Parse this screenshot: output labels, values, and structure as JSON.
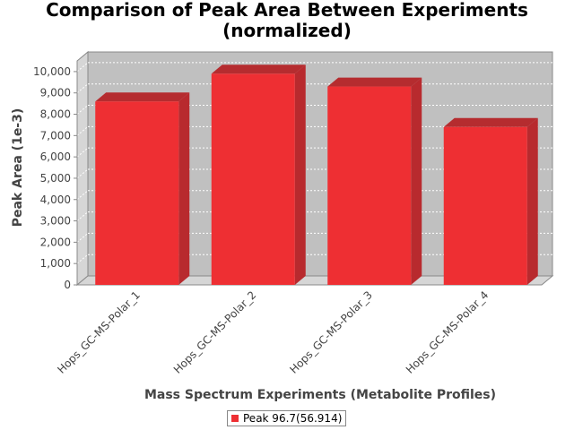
{
  "chart_data": {
    "type": "bar",
    "title": [
      "Comparison of Peak Area Between Experiments",
      "(normalized)"
    ],
    "xlabel": "Mass Spectrum Experiments (Metabolite Profiles)",
    "ylabel": "Peak Area (1e-3)",
    "categories": [
      "Hops_GC-MS-Polar_1",
      "Hops_GC-MS-Polar_2",
      "Hops_GC-MS-Polar_3",
      "Hops_GC-MS-Polar_4"
    ],
    "series": [
      {
        "name": "Peak 96.7(56.914)",
        "values": [
          8600,
          9900,
          9300,
          7400
        ],
        "color": "#ee2f33"
      }
    ],
    "ylim": [
      0,
      10500
    ],
    "yticks": [
      "0",
      "1,000",
      "2,000",
      "3,000",
      "4,000",
      "5,000",
      "6,000",
      "7,000",
      "8,000",
      "9,000",
      "10,000"
    ],
    "grid": true,
    "legend_position": "bottom",
    "style": "3d-bar"
  },
  "colors": {
    "plot_background": "#c0c0c0",
    "bar_front": "#ee2f33",
    "bar_top": "#b52c2f",
    "bar_side": "#b82a2e"
  }
}
